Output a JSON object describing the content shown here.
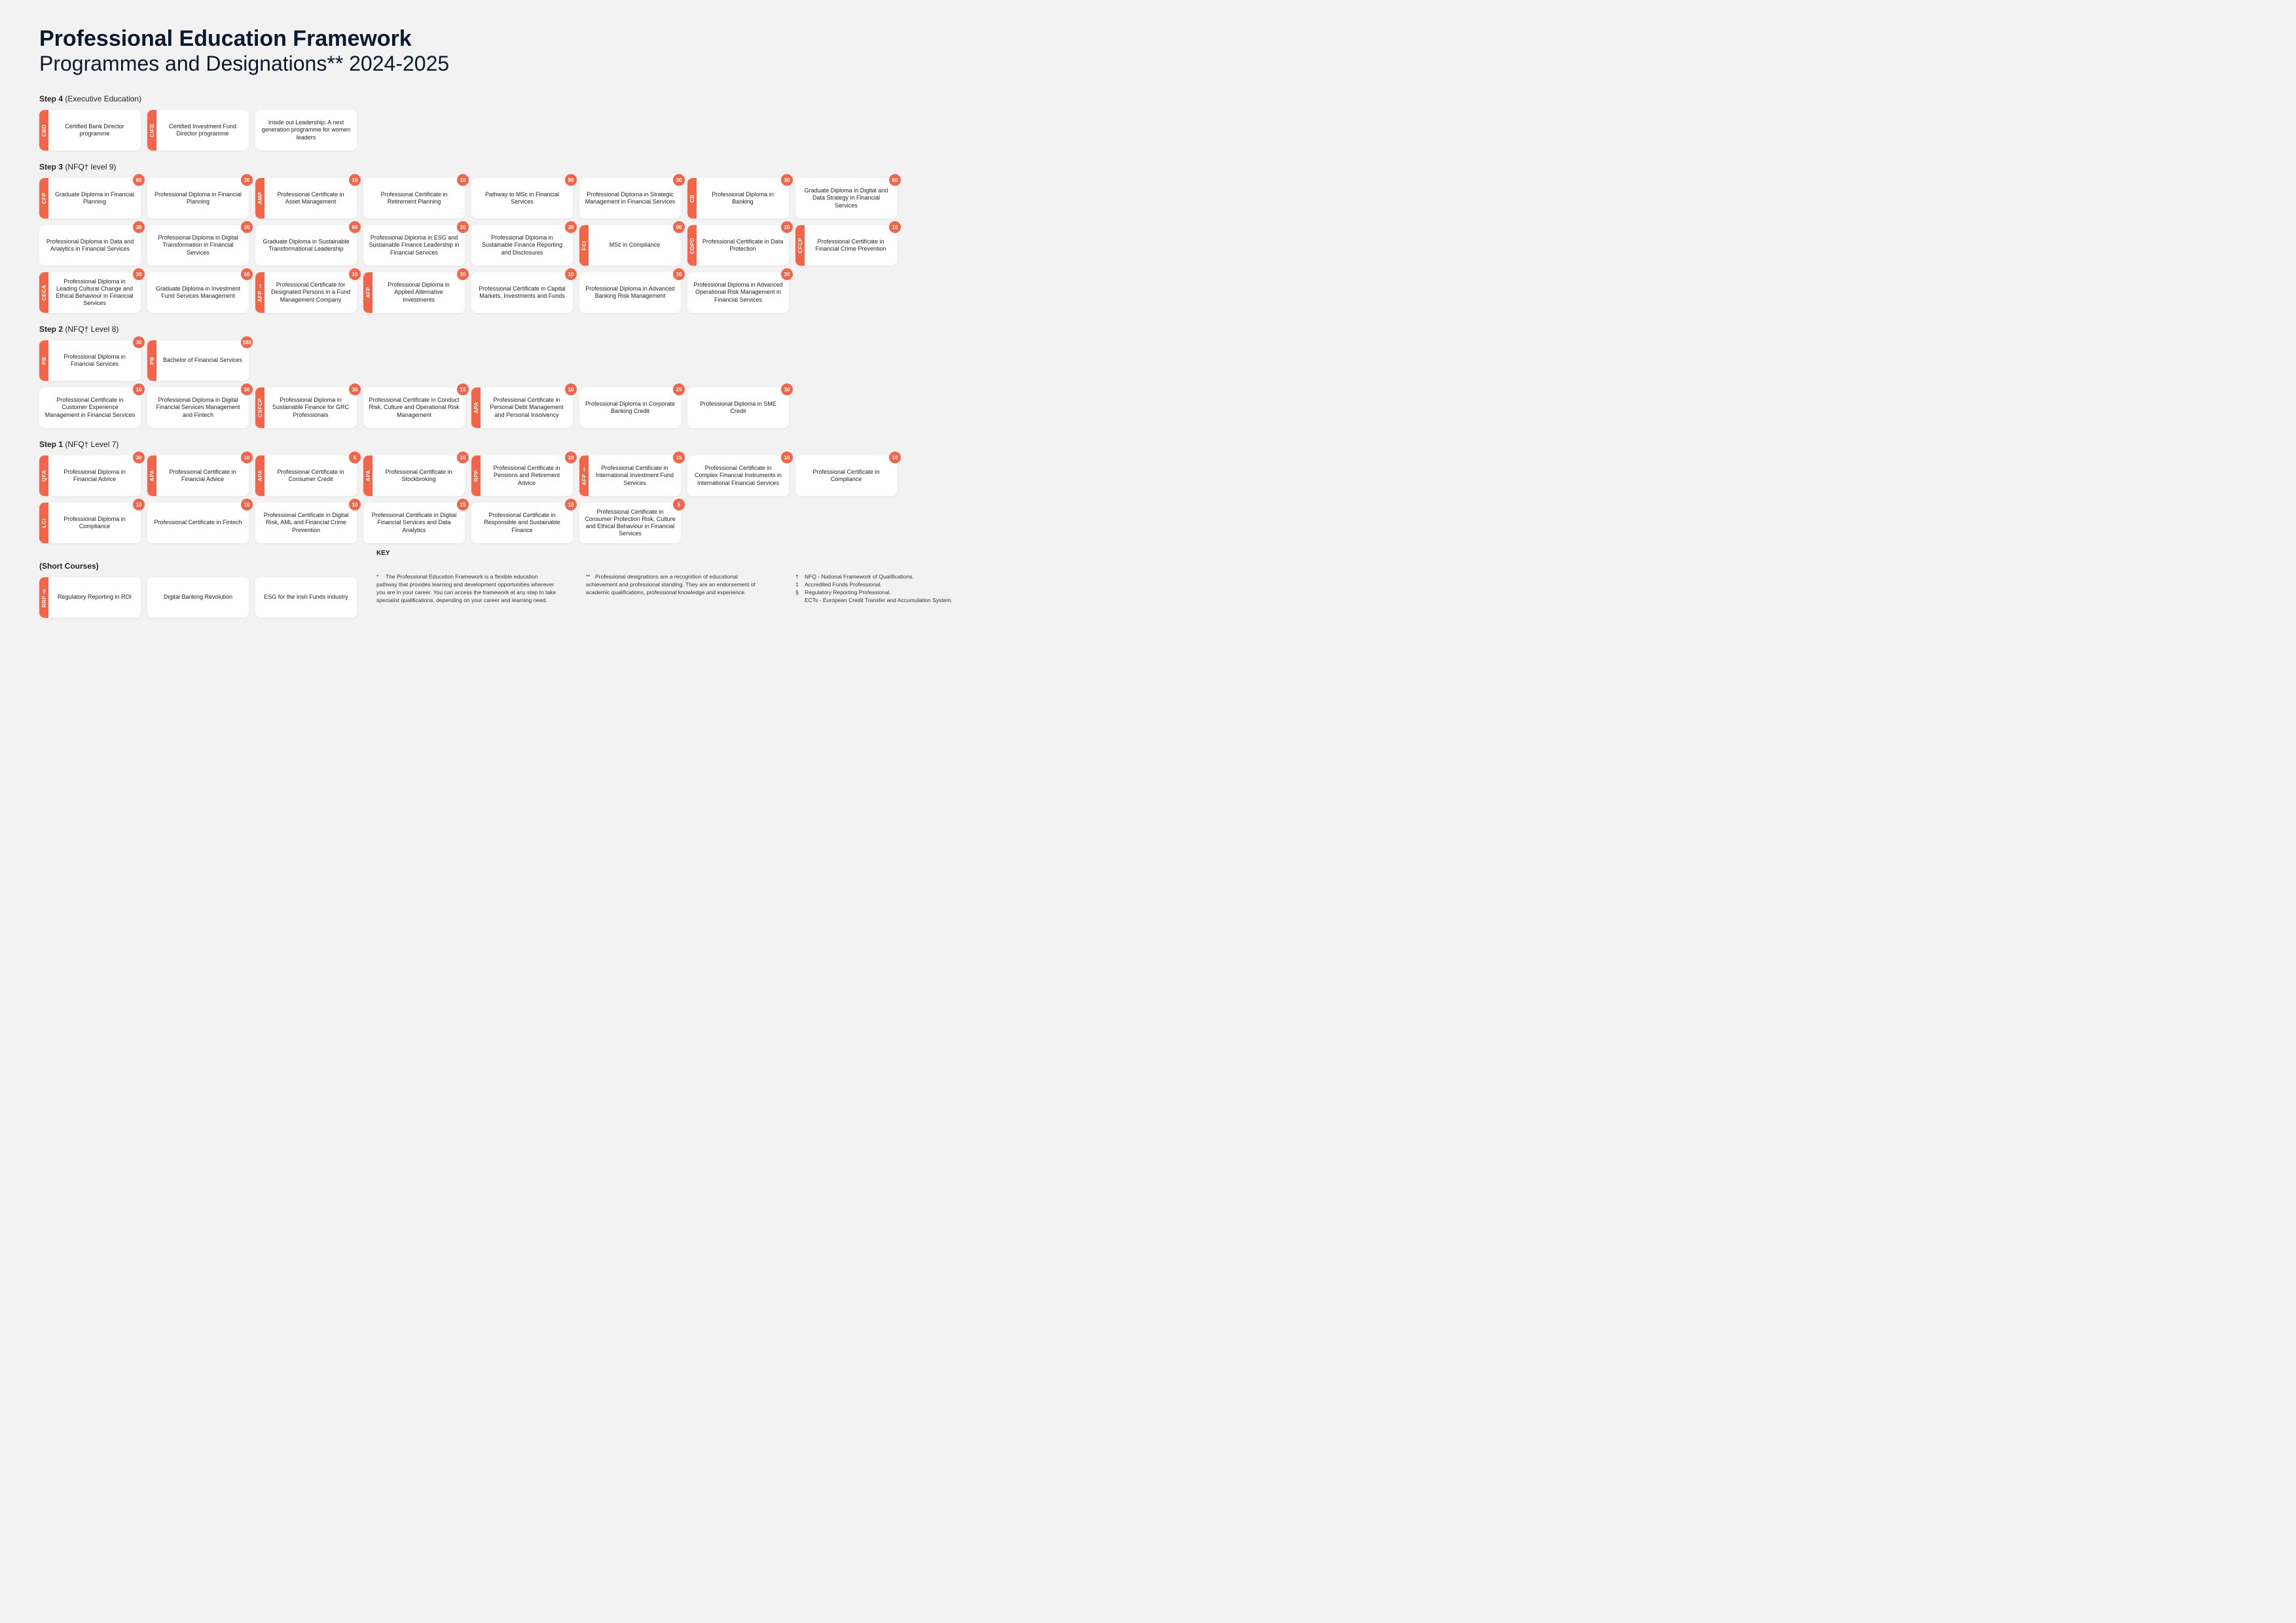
{
  "title": {
    "main": "Professional Education Framework",
    "sub": "Programmes and Designations** 2024-2025"
  },
  "accent_color": "#f26548",
  "bg_color": "#f2f2f2",
  "card_bg": "#ffffff",
  "steps": [
    {
      "label_bold": "Step 4",
      "label_rest": " (Executive Education)",
      "rows": [
        [
          {
            "tab": "CBD",
            "text": "Certified Bank Director programme",
            "badge": null
          },
          {
            "tab": "CIFD",
            "text": "Certified Investment Fund Director programme",
            "badge": null
          },
          {
            "tab": null,
            "text": "Inside out Leadership: A next generation programme for women leaders",
            "badge": null
          }
        ]
      ]
    },
    {
      "label_bold": "Step 3",
      "label_rest": " (NFQ† level 9)",
      "rows": [
        [
          {
            "tab": "CFP",
            "text": "Graduate Diploma in Financial Planning",
            "badge": "60"
          },
          {
            "tab": null,
            "text": "Professional Diploma in Financial Planning",
            "badge": "30"
          },
          {
            "tab": "AMP",
            "text": "Professional Certificate in Asset Management",
            "badge": "10"
          },
          {
            "tab": null,
            "text": "Professional Certificate in Retirement Planning",
            "badge": "10"
          },
          {
            "tab": null,
            "text": "Pathway to MSc in Financial Services",
            "badge": "90"
          },
          {
            "tab": null,
            "text": "Professional Diploma in Strategic Management in Financial Services",
            "badge": "30"
          },
          {
            "tab": "CB",
            "text": "Professional Diploma in Banking",
            "badge": "30"
          },
          {
            "tab": null,
            "text": "Graduate Diploma in Digital and Data Strategy in Financial Services",
            "badge": "60"
          }
        ],
        [
          {
            "tab": null,
            "text": "Professional Diploma in Data and Analytics in Financial Services",
            "badge": "30"
          },
          {
            "tab": null,
            "text": "Professional Diploma in Digital Transformation in Financial Services",
            "badge": "30"
          },
          {
            "tab": null,
            "text": "Graduate Diploma in Sustainable Transformational Leadership",
            "badge": "60"
          },
          {
            "tab": null,
            "text": "Professional Diploma in ESG and Sustainable Finance Leadership in Financial Services",
            "badge": "30"
          },
          {
            "tab": null,
            "text": "Professional Diploma in Sustainable Finance Reporting and Disclosures",
            "badge": "30"
          },
          {
            "tab": "FCI",
            "text": "MSc in Compliance",
            "badge": "90"
          },
          {
            "tab": "CDPO",
            "text": "Professional Certificate in Data Protection",
            "badge": "10"
          },
          {
            "tab": "CFCP",
            "text": "Professional Certificate in Financial Crime Prevention",
            "badge": "10"
          }
        ],
        [
          {
            "tab": "CECA",
            "text": "Professional Diploma in Leading Cultural Change and Ethical Behaviour in Financial Services",
            "badge": "30"
          },
          {
            "tab": null,
            "text": "Graduate Diploma in Investment Fund Services Management",
            "badge": "60"
          },
          {
            "tab": "AFP ‡",
            "text": "Professional Certificate for Designated Persons in a Fund Management Company",
            "badge": "10"
          },
          {
            "tab": "AFP",
            "text": "Professional Diploma in Applied Alternative Investments",
            "badge": "30"
          },
          {
            "tab": null,
            "text": "Professional Certificate in Capital Markets, Investments and Funds",
            "badge": "10"
          },
          {
            "tab": null,
            "text": "Professional Diploma in Advanced Banking Risk Management",
            "badge": "30"
          },
          {
            "tab": null,
            "text": "Professional Diploma in Advanced Operational Risk Management in Financial Services",
            "badge": "30"
          }
        ]
      ]
    },
    {
      "label_bold": "Step 2",
      "label_rest": " (NFQ† Level 8)",
      "rows": [
        [
          {
            "tab": "PB",
            "text": "Professional Diploma in Financial Services",
            "badge": "30"
          },
          {
            "tab": "PB",
            "text": "Bachelor of Financial Services",
            "badge": "180"
          }
        ],
        [
          {
            "tab": null,
            "text": "Professional Certificate in Customer Experience Management in Financial Services",
            "badge": "10"
          },
          {
            "tab": null,
            "text": "Professional Diploma in Digital Financial Services Management and Fintech",
            "badge": "30"
          },
          {
            "tab": "CSFCP",
            "text": "Professional Diploma in Sustainable Finance for GRC Professionals",
            "badge": "30"
          },
          {
            "tab": null,
            "text": "Professional Certificate in Conduct Risk, Culture and Operational Risk Management",
            "badge": "15"
          },
          {
            "tab": "APA",
            "text": "Professional Certificate in Personal Debt Management and Personal Insolvency",
            "badge": "10"
          },
          {
            "tab": null,
            "text": "Professional Diploma in Corporate Banking Credit",
            "badge": "25"
          },
          {
            "tab": null,
            "text": "Professional Diploma in SME Credit",
            "badge": "30"
          }
        ]
      ]
    },
    {
      "label_bold": "Step 1",
      "label_rest": " (NFQ† Level 7)",
      "rows": [
        [
          {
            "tab": "QFA",
            "text": "Professional Diploma in Financial Advice",
            "badge": "30"
          },
          {
            "tab": "APA",
            "text": "Professional Certificate in Financial Advice",
            "badge": "10"
          },
          {
            "tab": "APA",
            "text": "Professional Certificate in Consumer Credit",
            "badge": "5"
          },
          {
            "tab": "APA",
            "text": "Professional Certificate in Stockbroking",
            "badge": "10"
          },
          {
            "tab": "RPP",
            "text": "Professional Certificate in Pensions and Retirement Advice",
            "badge": "10"
          },
          {
            "tab": "AFP ‡",
            "text": "Professional Certificate in International Investment Fund Services",
            "badge": "15"
          },
          {
            "tab": null,
            "text": "Professional Certificate in Complex Financial Instruments in International Financial Services",
            "badge": "10"
          },
          {
            "tab": null,
            "text": "Professional Certificate in Compliance",
            "badge": "10"
          }
        ],
        [
          {
            "tab": "LCI",
            "text": "Professional Diploma in Compliance",
            "badge": "10"
          },
          {
            "tab": null,
            "text": "Professional Certificate in Fintech",
            "badge": "10"
          },
          {
            "tab": null,
            "text": "Professional Certificate in Digital Risk, AML and Financial Crime Prevention",
            "badge": "10"
          },
          {
            "tab": null,
            "text": "Professional Certificate in Digital Financial Services and Data Analytics",
            "badge": "15"
          },
          {
            "tab": null,
            "text": "Professional Certificate in Responsible and Sustainable Finance",
            "badge": "10"
          },
          {
            "tab": null,
            "text": "Professional Certificate in Consumer Protection Risk, Culture and Ethical Behaviour in Financial Services",
            "badge": "5"
          }
        ]
      ]
    },
    {
      "label_bold": "(Short Courses)",
      "label_rest": "",
      "rows": [
        [
          {
            "tab": "RRP §",
            "text": "Regulatory Reporting in ROI",
            "badge": null
          },
          {
            "tab": null,
            "text": "Digital Banking Revolution",
            "badge": null
          },
          {
            "tab": null,
            "text": "ESG for the Irish Funds Industry",
            "badge": null
          }
        ]
      ]
    }
  ],
  "key": {
    "title": "KEY",
    "col1": {
      "sym": "*",
      "text": "The Professional Education Framework is a flexible education pathway that provides learning and development opportunities wherever you are in your career. You can access the framework at any step to take specialist qualifications, depending on your career and learning need."
    },
    "col2": {
      "sym": "**",
      "text": "Professional designations are a recognition of educational achievement and professional standing. They are an endorsement of academic qualifications, professional knowledge and experience."
    },
    "col3": [
      {
        "sym": "†",
        "text": "NFQ - National Framework of Qualifications."
      },
      {
        "sym": "‡",
        "text": "Accredited Funds Professional."
      },
      {
        "sym": "§",
        "text": "Regulatory Reporting Professional."
      },
      {
        "sym": "",
        "text": "ECTs - European Credit Transfer and Accumulation System."
      }
    ]
  }
}
